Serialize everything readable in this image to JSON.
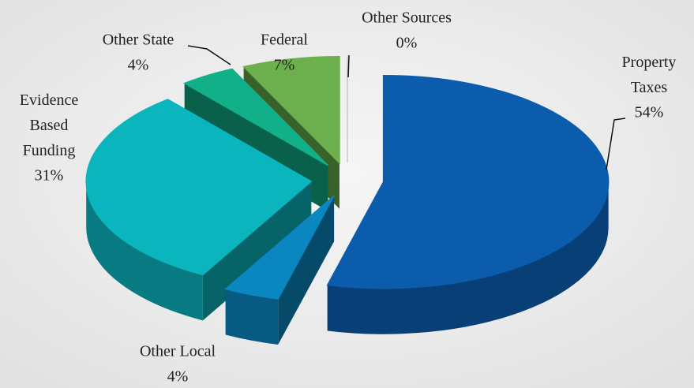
{
  "chart_data": {
    "type": "pie3d",
    "categories": [
      "Property Taxes",
      "Other Local",
      "Evidence Based Funding",
      "Other State",
      "Federal",
      "Other Sources"
    ],
    "values": [
      54,
      4,
      31,
      4,
      7,
      0
    ],
    "value_labels": [
      "54%",
      "4%",
      "31%",
      "4%",
      "7%",
      "0%"
    ],
    "colors": [
      "#0b5cad",
      "#0a86c0",
      "#0ab5be",
      "#12b088",
      "#6cb04e",
      "#c8c8c8"
    ]
  }
}
